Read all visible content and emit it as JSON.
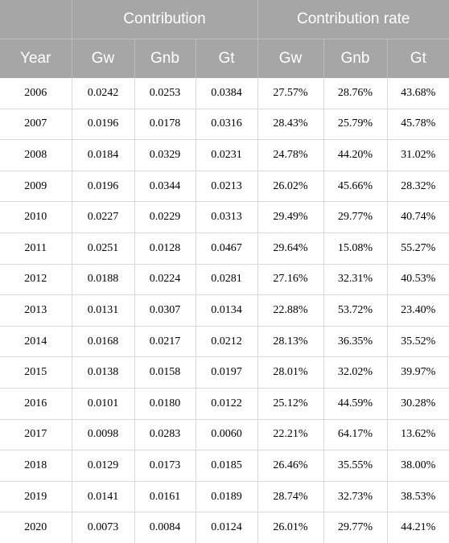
{
  "header": {
    "group_contribution": "Contribution",
    "group_rate": "Contribution rate",
    "year": "Year",
    "columns": [
      "Gw",
      "Gnb",
      "Gt",
      "Gw",
      "Gnb",
      "Gt"
    ]
  },
  "rows": [
    [
      "2006",
      "0.0242",
      "0.0253",
      "0.0384",
      "27.57%",
      "28.76%",
      "43.68%"
    ],
    [
      "2007",
      "0.0196",
      "0.0178",
      "0.0316",
      "28.43%",
      "25.79%",
      "45.78%"
    ],
    [
      "2008",
      "0.0184",
      "0.0329",
      "0.0231",
      "24.78%",
      "44.20%",
      "31.02%"
    ],
    [
      "2009",
      "0.0196",
      "0.0344",
      "0.0213",
      "26.02%",
      "45.66%",
      "28.32%"
    ],
    [
      "2010",
      "0.0227",
      "0.0229",
      "0.0313",
      "29.49%",
      "29.77%",
      "40.74%"
    ],
    [
      "2011",
      "0.0251",
      "0.0128",
      "0.0467",
      "29.64%",
      "15.08%",
      "55.27%"
    ],
    [
      "2012",
      "0.0188",
      "0.0224",
      "0.0281",
      "27.16%",
      "32.31%",
      "40.53%"
    ],
    [
      "2013",
      "0.0131",
      "0.0307",
      "0.0134",
      "22.88%",
      "53.72%",
      "23.40%"
    ],
    [
      "2014",
      "0.0168",
      "0.0217",
      "0.0212",
      "28.13%",
      "36.35%",
      "35.52%"
    ],
    [
      "2015",
      "0.0138",
      "0.0158",
      "0.0197",
      "28.01%",
      "32.02%",
      "39.97%"
    ],
    [
      "2016",
      "0.0101",
      "0.0180",
      "0.0122",
      "25.12%",
      "44.59%",
      "30.28%"
    ],
    [
      "2017",
      "0.0098",
      "0.0283",
      "0.0060",
      "22.21%",
      "64.17%",
      "13.62%"
    ],
    [
      "2018",
      "0.0129",
      "0.0173",
      "0.0185",
      "26.46%",
      "35.55%",
      "38.00%"
    ],
    [
      "2019",
      "0.0141",
      "0.0161",
      "0.0189",
      "28.74%",
      "32.73%",
      "38.53%"
    ],
    [
      "2020",
      "0.0073",
      "0.0084",
      "0.0124",
      "26.01%",
      "29.77%",
      "44.21%"
    ]
  ]
}
